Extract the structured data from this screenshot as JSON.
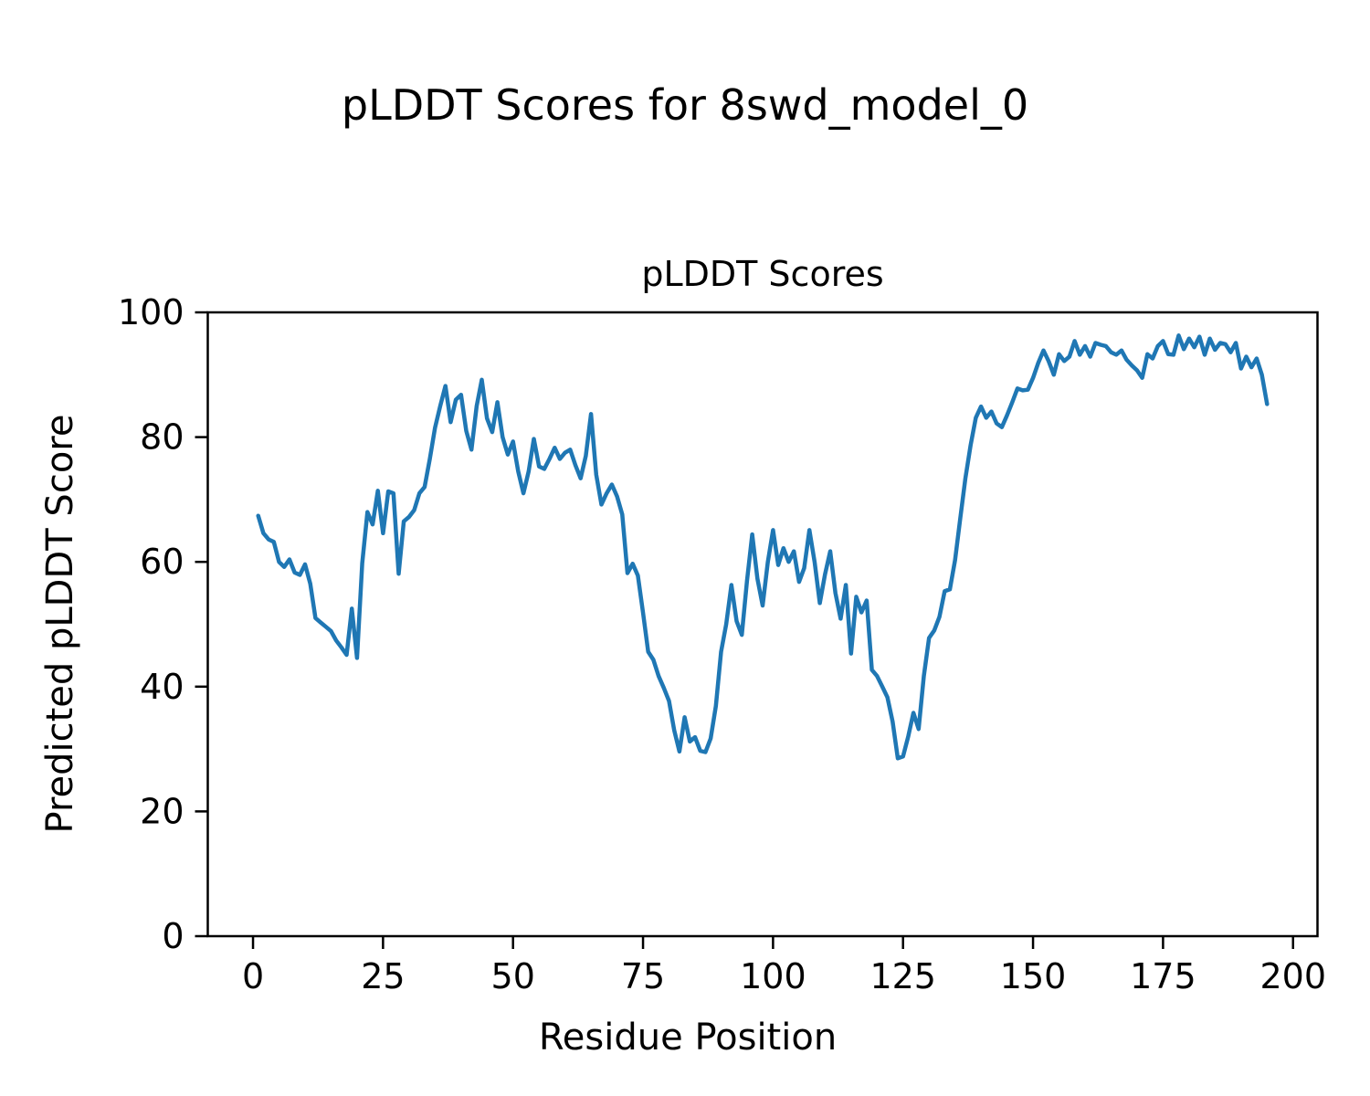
{
  "figure": {
    "suptitle": "pLDDT Scores for 8swd_model_0"
  },
  "chart_data": {
    "type": "line",
    "title": "pLDDT Scores",
    "xlabel": "Residue Position",
    "ylabel": "Predicted pLDDT Score",
    "xlim": [
      -8.7,
      204.7
    ],
    "ylim": [
      0,
      100
    ],
    "xticks": [
      0,
      25,
      50,
      75,
      100,
      125,
      150,
      175,
      200
    ],
    "yticks": [
      0,
      20,
      40,
      60,
      80,
      100
    ],
    "grid": false,
    "legend": "none",
    "background": "#ffffff",
    "text_color": "#000000",
    "spine_color": "#000000",
    "series": [
      {
        "name": "pLDDT",
        "color": "#1f77b4",
        "x_start": 1,
        "x_step": 1,
        "values": [
          67.4,
          64.6,
          63.6,
          63.2,
          60.0,
          59.2,
          60.4,
          58.3,
          57.9,
          59.6,
          56.5,
          51.0,
          50.3,
          49.6,
          48.9,
          47.4,
          46.3,
          45.1,
          52.5,
          44.6,
          59.8,
          68.0,
          66.0,
          71.4,
          64.6,
          71.3,
          71.0,
          58.1,
          66.5,
          67.2,
          68.3,
          71.0,
          72.0,
          76.5,
          81.5,
          85.0,
          88.2,
          82.4,
          86.0,
          86.8,
          81.0,
          78.0,
          85.0,
          89.2,
          83.0,
          80.8,
          85.6,
          80.0,
          77.2,
          79.3,
          74.5,
          71.0,
          74.5,
          79.7,
          75.3,
          74.9,
          76.5,
          78.3,
          76.5,
          77.5,
          78.0,
          75.5,
          73.4,
          77.0,
          83.7,
          74.0,
          69.2,
          71.0,
          72.4,
          70.5,
          67.6,
          58.2,
          59.7,
          57.8,
          51.9,
          45.6,
          44.3,
          41.7,
          39.8,
          37.7,
          33.0,
          29.6,
          35.1,
          31.2,
          31.9,
          29.7,
          29.5,
          31.7,
          36.9,
          45.6,
          50.0,
          56.3,
          50.5,
          48.3,
          57.0,
          64.4,
          57.3,
          53.0,
          60.0,
          65.1,
          59.5,
          62.2,
          60.0,
          61.7,
          56.8,
          59.0,
          65.1,
          60.0,
          53.4,
          58.0,
          61.7,
          55.0,
          50.9,
          56.3,
          45.3,
          54.4,
          51.9,
          53.8,
          42.7,
          41.7,
          40.0,
          38.3,
          34.4,
          28.5,
          28.8,
          32.0,
          35.8,
          33.2,
          41.7,
          47.8,
          49.0,
          51.2,
          55.3,
          55.6,
          60.3,
          67.0,
          73.4,
          78.7,
          83.1,
          84.9,
          83.1,
          84.1,
          82.2,
          81.6,
          83.5,
          85.6,
          87.8,
          87.5,
          87.6,
          89.5,
          91.9,
          93.9,
          92.2,
          90.0,
          93.3,
          92.2,
          92.9,
          95.4,
          93.2,
          94.6,
          92.9,
          95.1,
          94.8,
          94.6,
          93.6,
          93.2,
          93.9,
          92.4,
          91.5,
          90.7,
          89.5,
          93.3,
          92.6,
          94.6,
          95.4,
          93.3,
          93.2,
          96.3,
          94.1,
          95.8,
          94.4,
          96.1,
          93.2,
          95.8,
          94.0,
          95.1,
          94.9,
          93.6,
          95.1,
          91.0,
          92.9,
          91.2,
          92.6,
          90.0,
          85.3
        ]
      }
    ]
  }
}
